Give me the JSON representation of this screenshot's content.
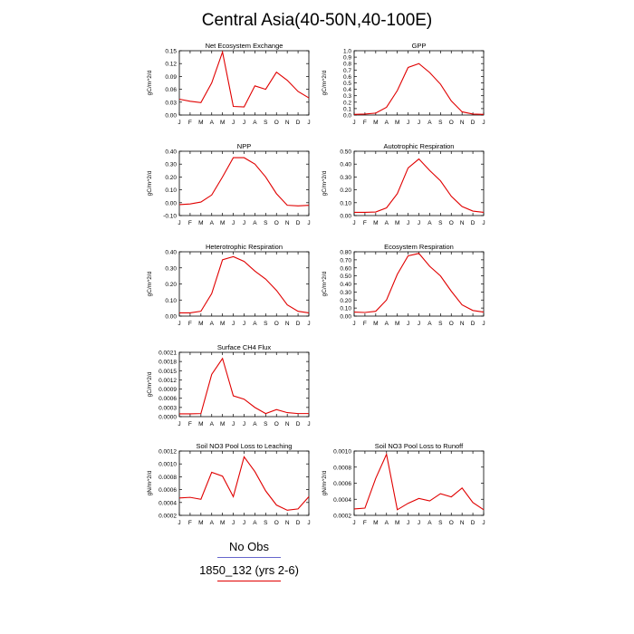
{
  "title": "Central Asia(40-50N,40-100E)",
  "months": [
    "J",
    "F",
    "M",
    "A",
    "M",
    "J",
    "J",
    "A",
    "S",
    "O",
    "N",
    "D",
    "J"
  ],
  "colors": {
    "series": "#e00000",
    "obs_line": "#6666cc",
    "axis": "#000000"
  },
  "legend": {
    "obs_label": "No Obs",
    "model_label": "1850_132 (yrs 2-6)"
  },
  "chart_data": [
    {
      "type": "line",
      "title": "Net Ecosystem Exchange",
      "ylabel": "gC/m^2/d",
      "ylim": [
        0.0,
        0.15
      ],
      "yticks": [
        "0.00",
        "0.03",
        "0.06",
        "0.09",
        "0.12",
        "0.15"
      ],
      "x": [
        "J",
        "F",
        "M",
        "A",
        "M",
        "J",
        "J",
        "A",
        "S",
        "O",
        "N",
        "D",
        "J"
      ],
      "values": [
        0.037,
        0.032,
        0.029,
        0.075,
        0.147,
        0.02,
        0.019,
        0.068,
        0.06,
        0.1,
        0.081,
        0.055,
        0.04
      ]
    },
    {
      "type": "line",
      "title": "GPP",
      "ylabel": "gC/m^2/d",
      "ylim": [
        0.0,
        1.0
      ],
      "yticks": [
        "0.0",
        "0.1",
        "0.2",
        "0.3",
        "0.4",
        "0.5",
        "0.6",
        "0.7",
        "0.8",
        "0.9",
        "1.0"
      ],
      "x": [
        "J",
        "F",
        "M",
        "A",
        "M",
        "J",
        "J",
        "A",
        "S",
        "O",
        "N",
        "D",
        "J"
      ],
      "values": [
        0.01,
        0.015,
        0.03,
        0.12,
        0.38,
        0.74,
        0.8,
        0.66,
        0.48,
        0.22,
        0.05,
        0.015,
        0.01
      ]
    },
    {
      "type": "line",
      "title": "NPP",
      "ylabel": "gC/m^2/d",
      "ylim": [
        -0.1,
        0.4
      ],
      "yticks": [
        "-0.10",
        "0.00",
        "0.10",
        "0.20",
        "0.30",
        "0.40"
      ],
      "x": [
        "J",
        "F",
        "M",
        "A",
        "M",
        "J",
        "J",
        "A",
        "S",
        "O",
        "N",
        "D",
        "J"
      ],
      "values": [
        -0.015,
        -0.01,
        0.005,
        0.06,
        0.2,
        0.35,
        0.35,
        0.3,
        0.2,
        0.07,
        -0.02,
        -0.025,
        -0.02
      ]
    },
    {
      "type": "line",
      "title": "Autotrophic Respiration",
      "ylabel": "gC/m^2/d",
      "ylim": [
        0.0,
        0.5
      ],
      "yticks": [
        "0.00",
        "0.10",
        "0.20",
        "0.30",
        "0.40",
        "0.50"
      ],
      "x": [
        "J",
        "F",
        "M",
        "A",
        "M",
        "J",
        "J",
        "A",
        "S",
        "O",
        "N",
        "D",
        "J"
      ],
      "values": [
        0.025,
        0.025,
        0.028,
        0.06,
        0.17,
        0.37,
        0.44,
        0.35,
        0.27,
        0.15,
        0.07,
        0.035,
        0.025
      ]
    },
    {
      "type": "line",
      "title": "Heterotrophic Respiration",
      "ylabel": "gC/m^2/d",
      "ylim": [
        0.0,
        0.4
      ],
      "yticks": [
        "0.00",
        "0.10",
        "0.20",
        "0.30",
        "0.40"
      ],
      "x": [
        "J",
        "F",
        "M",
        "A",
        "M",
        "J",
        "J",
        "A",
        "S",
        "O",
        "N",
        "D",
        "J"
      ],
      "values": [
        0.02,
        0.02,
        0.03,
        0.14,
        0.35,
        0.37,
        0.34,
        0.28,
        0.23,
        0.16,
        0.07,
        0.03,
        0.02
      ]
    },
    {
      "type": "line",
      "title": "Ecosystem Respiration",
      "ylabel": "gC/m^2/d",
      "ylim": [
        0.0,
        0.8
      ],
      "yticks": [
        "0.00",
        "0.10",
        "0.20",
        "0.30",
        "0.40",
        "0.50",
        "0.60",
        "0.70",
        "0.80"
      ],
      "x": [
        "J",
        "F",
        "M",
        "A",
        "M",
        "J",
        "J",
        "A",
        "S",
        "O",
        "N",
        "D",
        "J"
      ],
      "values": [
        0.05,
        0.045,
        0.06,
        0.2,
        0.52,
        0.75,
        0.78,
        0.62,
        0.5,
        0.31,
        0.14,
        0.07,
        0.05
      ]
    },
    {
      "type": "line",
      "title": "Surface CH4 Flux",
      "ylabel": "gC/m^2/d",
      "ylim": [
        0.0,
        0.0021
      ],
      "yticks": [
        "0.0000",
        "0.0003",
        "0.0006",
        "0.0009",
        "0.0012",
        "0.0015",
        "0.0018",
        "0.0021"
      ],
      "x": [
        "J",
        "F",
        "M",
        "A",
        "M",
        "J",
        "J",
        "A",
        "S",
        "O",
        "N",
        "D",
        "J"
      ],
      "values": [
        9e-05,
        9e-05,
        0.0001,
        0.00138,
        0.0019,
        0.00068,
        0.00057,
        0.0003,
        0.0001,
        0.00023,
        0.00013,
        0.0001,
        0.0001
      ]
    },
    {
      "type": "line",
      "title": "Soil NO3 Pool Loss to Leaching",
      "ylabel": "gN/m^2/d",
      "ylim": [
        0.0002,
        0.0012
      ],
      "yticks": [
        "0.0002",
        "0.0004",
        "0.0006",
        "0.0008",
        "0.0010",
        "0.0012"
      ],
      "x": [
        "J",
        "F",
        "M",
        "A",
        "M",
        "J",
        "J",
        "A",
        "S",
        "O",
        "N",
        "D",
        "J"
      ],
      "values": [
        0.00047,
        0.00048,
        0.00045,
        0.00087,
        0.00081,
        0.00049,
        0.00111,
        0.00088,
        0.00058,
        0.00036,
        0.00028,
        0.0003,
        0.00049
      ]
    },
    {
      "type": "line",
      "title": "Soil NO3 Pool Loss to Runoff",
      "ylabel": "gN/m^2/d",
      "ylim": [
        0.0002,
        0.001
      ],
      "yticks": [
        "0.0002",
        "0.0004",
        "0.0006",
        "0.0008",
        "0.0010"
      ],
      "x": [
        "J",
        "F",
        "M",
        "A",
        "M",
        "J",
        "J",
        "A",
        "S",
        "O",
        "N",
        "D",
        "J"
      ],
      "values": [
        0.00028,
        0.00029,
        0.00066,
        0.00096,
        0.00027,
        0.00035,
        0.00041,
        0.00038,
        0.00047,
        0.00043,
        0.00054,
        0.00036,
        0.00027
      ]
    }
  ]
}
